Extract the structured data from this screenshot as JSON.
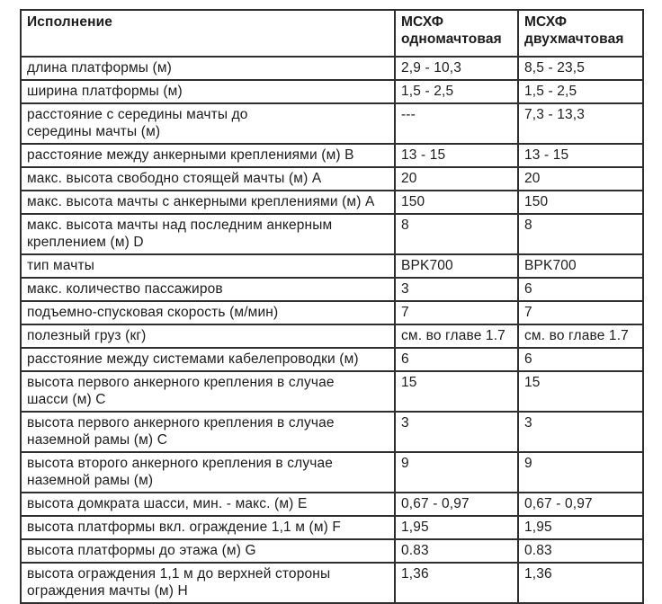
{
  "table": {
    "header": {
      "col1": "Исполнение",
      "col2": "МСХФ\nодномачтовая",
      "col3": "МСХФ\nдвухмачтовая"
    },
    "rows": [
      {
        "label": "длина платформы (м)",
        "single": "2,9 - 10,3",
        "twin": "8,5 - 23,5"
      },
      {
        "label": "ширина платформы (м)",
        "single": "1,5 - 2,5",
        "twin": "1,5 - 2,5"
      },
      {
        "label": "расстояние с середины мачты до\nсередины мачты (м)",
        "single": "---",
        "twin": "7,3 - 13,3"
      },
      {
        "label": "расстояние между анкерными креплениями (м) B",
        "single": "13 - 15",
        "twin": "13 - 15"
      },
      {
        "label": "макс. высота свободно стоящей мачты (м) A",
        "single": "20",
        "twin": "20"
      },
      {
        "label": "макс. высота мачты с анкерными креплениями (м) A",
        "single": "150",
        "twin": "150"
      },
      {
        "label": "макс. высота мачты над последним анкерным\nкреплением (м) D",
        "single": "8",
        "twin": "8"
      },
      {
        "label": "тип мачты",
        "single": "BPK700",
        "twin": "BPK700"
      },
      {
        "label": "макс. количество пассажиров",
        "single": "3",
        "twin": "6"
      },
      {
        "label": "подъемно-спусковая скорость (м/мин)",
        "single": "7",
        "twin": "7"
      },
      {
        "label": "полезный груз (кг)",
        "single": "см. во главе 1.7",
        "twin": "см. во главе 1.7"
      },
      {
        "label": "расстояние между системами кабелепроводки (м)",
        "single": "6",
        "twin": "6"
      },
      {
        "label": "высота первого анкерного крепления в случае\nшасси (м) C",
        "single": "15",
        "twin": "15"
      },
      {
        "label": "высота первого анкерного крепления в случае\nназемной рамы (м) C",
        "single": "3",
        "twin": "3"
      },
      {
        "label": "высота второго анкерного крепления в случае\nназемной рамы (м)",
        "single": "9",
        "twin": "9"
      },
      {
        "label": "высота домкрата шасси, мин. - макс. (м) E",
        "single": "0,67 - 0,97",
        "twin": "0,67 - 0,97"
      },
      {
        "label": "высота платформы вкл. ограждение 1,1 м (м) F",
        "single": "1,95",
        "twin": "1,95"
      },
      {
        "label": "высота платформы до этажа (м) G",
        "single": "0.83",
        "twin": "0.83"
      },
      {
        "label": "высота ограждения 1,1 м до верхней стороны\nограждения мачты (м) H",
        "single": "1,36",
        "twin": "1,36"
      }
    ]
  },
  "colors": {
    "text": "#1c1c1c",
    "border": "#2e2e2e",
    "background": "#ffffff"
  }
}
